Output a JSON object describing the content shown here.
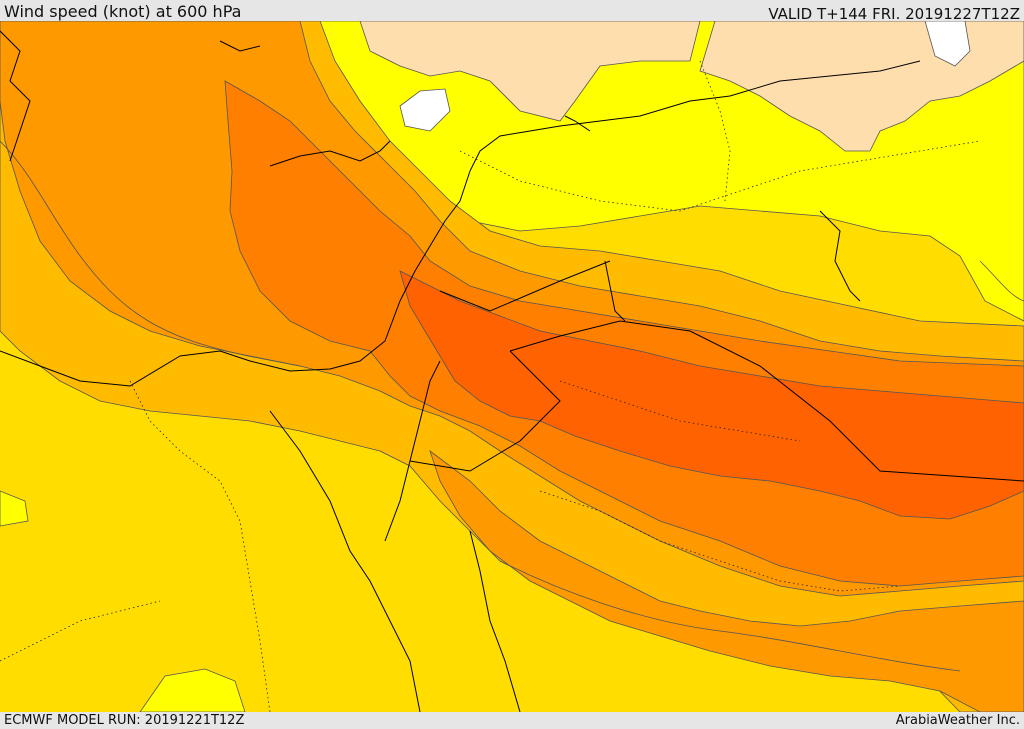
{
  "header": {
    "title": "Wind speed (knot) at 600 hPa",
    "valid_time": "VALID T+144 FRI. 20191227T12Z"
  },
  "footer": {
    "model_run": "ECMWF MODEL RUN: 20191221T12Z",
    "credit": "ArabiaWeather Inc."
  },
  "map": {
    "variable": "wind speed",
    "unit": "knot",
    "level": "600 hPa",
    "colors": {
      "band_white": "#ffffff",
      "band_peach": "#ffdead",
      "band_yellow": "#ffff00",
      "band_gold": "#ffdd00",
      "band_amber": "#ffbb00",
      "band_orange": "#ff9900",
      "band_dark_orange": "#ff7f00",
      "band_red_orange": "#ff6200",
      "coastline": "#000000",
      "contour_line": "#555555"
    }
  }
}
